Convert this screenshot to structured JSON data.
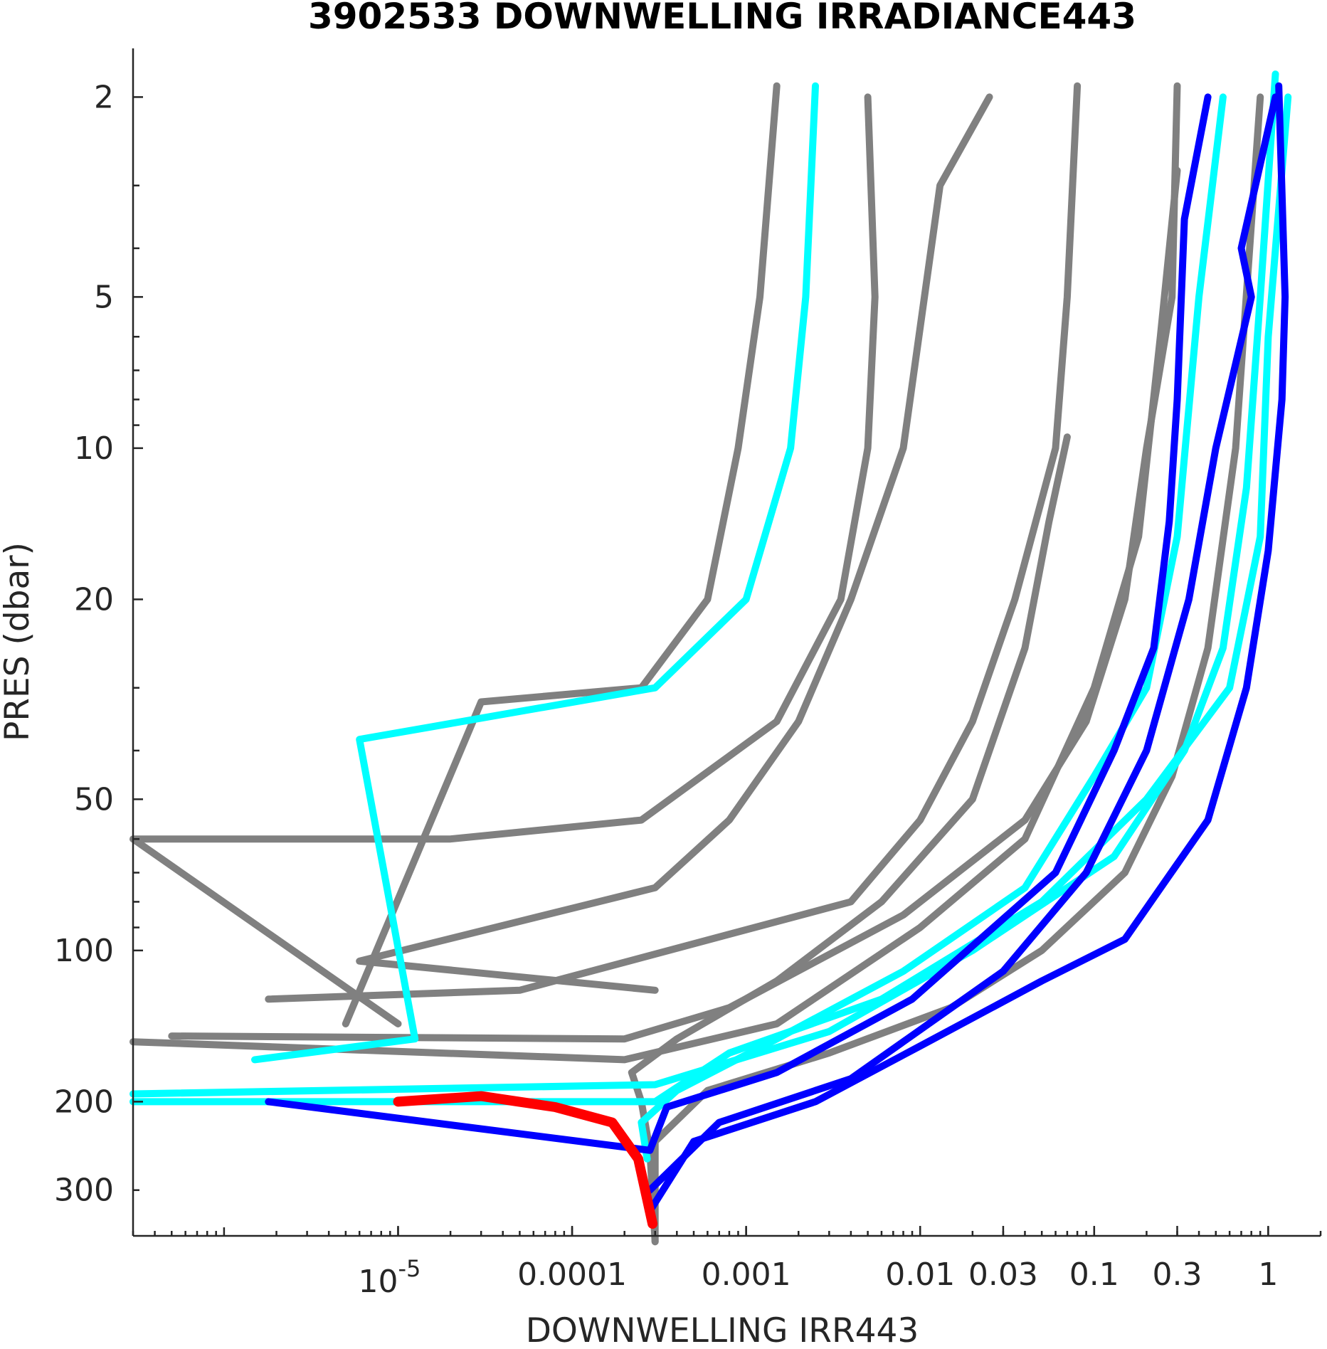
{
  "chart_data": {
    "type": "line",
    "title": "3902533  DOWNWELLING IRRADIANCE443",
    "xlabel": "DOWNWELLING IRR443",
    "ylabel": "PRES (dbar)",
    "x_scale": "log",
    "y_scale": "log",
    "y_reversed": true,
    "xlim": [
      3e-07,
      2
    ],
    "ylim": [
      370,
      1.6
    ],
    "x_ticks": [
      {
        "value": 1e-05,
        "label": "10",
        "exponent": "-5"
      },
      {
        "value": 0.0001,
        "label": "0.0001"
      },
      {
        "value": 0.001,
        "label": "0.001"
      },
      {
        "value": 0.01,
        "label": "0.01"
      },
      {
        "value": 0.03,
        "label": "0.03"
      },
      {
        "value": 0.1,
        "label": "0.1"
      },
      {
        "value": 0.3,
        "label": "0.3"
      },
      {
        "value": 1,
        "label": "1"
      }
    ],
    "y_ticks": [
      {
        "value": 2,
        "label": "2"
      },
      {
        "value": 5,
        "label": "5"
      },
      {
        "value": 10,
        "label": "10"
      },
      {
        "value": 20,
        "label": "20"
      },
      {
        "value": 50,
        "label": "50"
      },
      {
        "value": 100,
        "label": "100"
      },
      {
        "value": 200,
        "label": "200"
      },
      {
        "value": 300,
        "label": "300"
      }
    ],
    "colors": {
      "older": "#808080",
      "recent": "#00ffff",
      "latest": "#0000ff",
      "current": "#ff0000"
    },
    "series": [
      {
        "group": "older",
        "points": [
          [
            0.0015,
            1.9
          ],
          [
            0.0012,
            5
          ],
          [
            0.0009,
            10
          ],
          [
            0.0006,
            20
          ],
          [
            0.00025,
            30
          ],
          [
            3e-05,
            32
          ],
          [
            5e-06,
            140
          ]
        ]
      },
      {
        "group": "older",
        "points": [
          [
            0.005,
            2
          ],
          [
            0.0055,
            5
          ],
          [
            0.005,
            10
          ],
          [
            0.0035,
            20
          ],
          [
            0.0015,
            35
          ],
          [
            0.00025,
            55
          ],
          [
            2e-05,
            60
          ],
          [
            3e-07,
            60
          ],
          [
            1e-05,
            140
          ]
        ]
      },
      {
        "group": "older",
        "points": [
          [
            0.025,
            2
          ],
          [
            0.013,
            3
          ],
          [
            0.008,
            10
          ],
          [
            0.004,
            20
          ],
          [
            0.002,
            35
          ],
          [
            0.0008,
            55
          ],
          [
            0.0003,
            75
          ],
          [
            6e-06,
            105
          ],
          [
            0.0003,
            120
          ]
        ]
      },
      {
        "group": "older",
        "points": [
          [
            0.08,
            1.9
          ],
          [
            0.07,
            5
          ],
          [
            0.06,
            10
          ],
          [
            0.035,
            20
          ],
          [
            0.02,
            35
          ],
          [
            0.01,
            55
          ],
          [
            0.004,
            80
          ],
          [
            5e-05,
            120
          ],
          [
            1.8e-06,
            125
          ]
        ]
      },
      {
        "group": "older",
        "points": [
          [
            0.3,
            1.9
          ],
          [
            0.28,
            5
          ],
          [
            0.2,
            10
          ],
          [
            0.15,
            20
          ],
          [
            0.09,
            35
          ],
          [
            0.04,
            55
          ],
          [
            0.008,
            85
          ],
          [
            0.0008,
            130
          ],
          [
            0.0002,
            150
          ],
          [
            5e-07,
            148
          ]
        ]
      },
      {
        "group": "older",
        "points": [
          [
            0.3,
            2.8
          ],
          [
            0.24,
            6
          ],
          [
            0.18,
            15
          ],
          [
            0.1,
            30
          ],
          [
            0.04,
            60
          ],
          [
            0.01,
            90
          ],
          [
            0.0015,
            140
          ],
          [
            0.0002,
            165
          ],
          [
            3e-07,
            152
          ]
        ]
      },
      {
        "group": "older",
        "points": [
          [
            0.07,
            9.5
          ],
          [
            0.055,
            14
          ],
          [
            0.04,
            25
          ],
          [
            0.02,
            50
          ],
          [
            0.006,
            80
          ],
          [
            0.0015,
            115
          ],
          [
            0.0004,
            150
          ],
          [
            0.00022,
            175
          ],
          [
            0.00025,
            200
          ],
          [
            0.00028,
            250
          ],
          [
            0.0003,
            380
          ]
        ]
      },
      {
        "group": "older",
        "points": [
          [
            0.9,
            2
          ],
          [
            0.65,
            10
          ],
          [
            0.45,
            25
          ],
          [
            0.28,
            45
          ],
          [
            0.15,
            70
          ],
          [
            0.05,
            100
          ],
          [
            0.015,
            130
          ],
          [
            0.003,
            160
          ],
          [
            0.0006,
            190
          ],
          [
            0.0003,
            240
          ],
          [
            0.0003,
            380
          ]
        ]
      },
      {
        "group": "recent",
        "points": [
          [
            0.0025,
            1.9
          ],
          [
            0.0022,
            5
          ],
          [
            0.0018,
            10
          ],
          [
            0.001,
            20
          ],
          [
            0.0003,
            30
          ],
          [
            6e-06,
            38
          ],
          [
            1.25e-05,
            150
          ],
          [
            1.5e-06,
            165
          ]
        ]
      },
      {
        "group": "recent",
        "points": [
          [
            0.55,
            2
          ],
          [
            0.4,
            5
          ],
          [
            0.3,
            15
          ],
          [
            0.2,
            30
          ],
          [
            0.1,
            45
          ],
          [
            0.04,
            75
          ],
          [
            0.008,
            110
          ],
          [
            0.0015,
            150
          ],
          [
            0.0004,
            190
          ],
          [
            0.00025,
            220
          ],
          [
            0.00027,
            260
          ]
        ]
      },
      {
        "group": "recent",
        "points": [
          [
            1.1,
            1.8
          ],
          [
            0.9,
            5
          ],
          [
            0.75,
            12
          ],
          [
            0.55,
            25
          ],
          [
            0.33,
            40
          ],
          [
            0.13,
            65
          ],
          [
            0.02,
            100
          ],
          [
            0.003,
            145
          ],
          [
            0.0003,
            185
          ],
          [
            3e-07,
            193
          ]
        ]
      },
      {
        "group": "recent",
        "points": [
          [
            1.3,
            2
          ],
          [
            1.0,
            6
          ],
          [
            0.9,
            15
          ],
          [
            0.6,
            30
          ],
          [
            0.2,
            50
          ],
          [
            0.05,
            80
          ],
          [
            0.006,
            125
          ],
          [
            0.0008,
            160
          ],
          [
            0.0003,
            200
          ],
          [
            3e-07,
            200
          ]
        ]
      },
      {
        "group": "latest",
        "points": [
          [
            0.45,
            2
          ],
          [
            0.33,
            3.5
          ],
          [
            0.3,
            8
          ],
          [
            0.27,
            14
          ],
          [
            0.22,
            25
          ],
          [
            0.13,
            40
          ],
          [
            0.06,
            70
          ],
          [
            0.009,
            125
          ],
          [
            0.0015,
            175
          ],
          [
            0.00035,
            205
          ],
          [
            0.00028,
            250
          ],
          [
            1.8e-06,
            200
          ]
        ]
      },
      {
        "group": "latest",
        "points": [
          [
            1.15,
            1.9
          ],
          [
            1.25,
            5
          ],
          [
            1.2,
            8
          ],
          [
            1.0,
            16
          ],
          [
            0.75,
            30
          ],
          [
            0.45,
            55
          ],
          [
            0.15,
            95
          ],
          [
            0.05,
            115
          ],
          [
            0.01,
            155
          ],
          [
            0.0025,
            200
          ],
          [
            0.0005,
            240
          ],
          [
            0.00028,
            330
          ]
        ]
      },
      {
        "group": "latest",
        "points": [
          [
            1.1,
            2
          ],
          [
            0.7,
            4
          ],
          [
            0.8,
            5
          ],
          [
            0.5,
            10
          ],
          [
            0.35,
            20
          ],
          [
            0.2,
            40
          ],
          [
            0.09,
            70
          ],
          [
            0.03,
            110
          ],
          [
            0.004,
            180
          ],
          [
            0.0007,
            220
          ],
          [
            0.00028,
            300
          ]
        ]
      },
      {
        "group": "current",
        "points": [
          [
            1e-05,
            200
          ],
          [
            3e-05,
            195
          ],
          [
            8e-05,
            205
          ],
          [
            0.00017,
            220
          ],
          [
            0.00024,
            260
          ],
          [
            0.00029,
            350
          ]
        ]
      }
    ]
  }
}
